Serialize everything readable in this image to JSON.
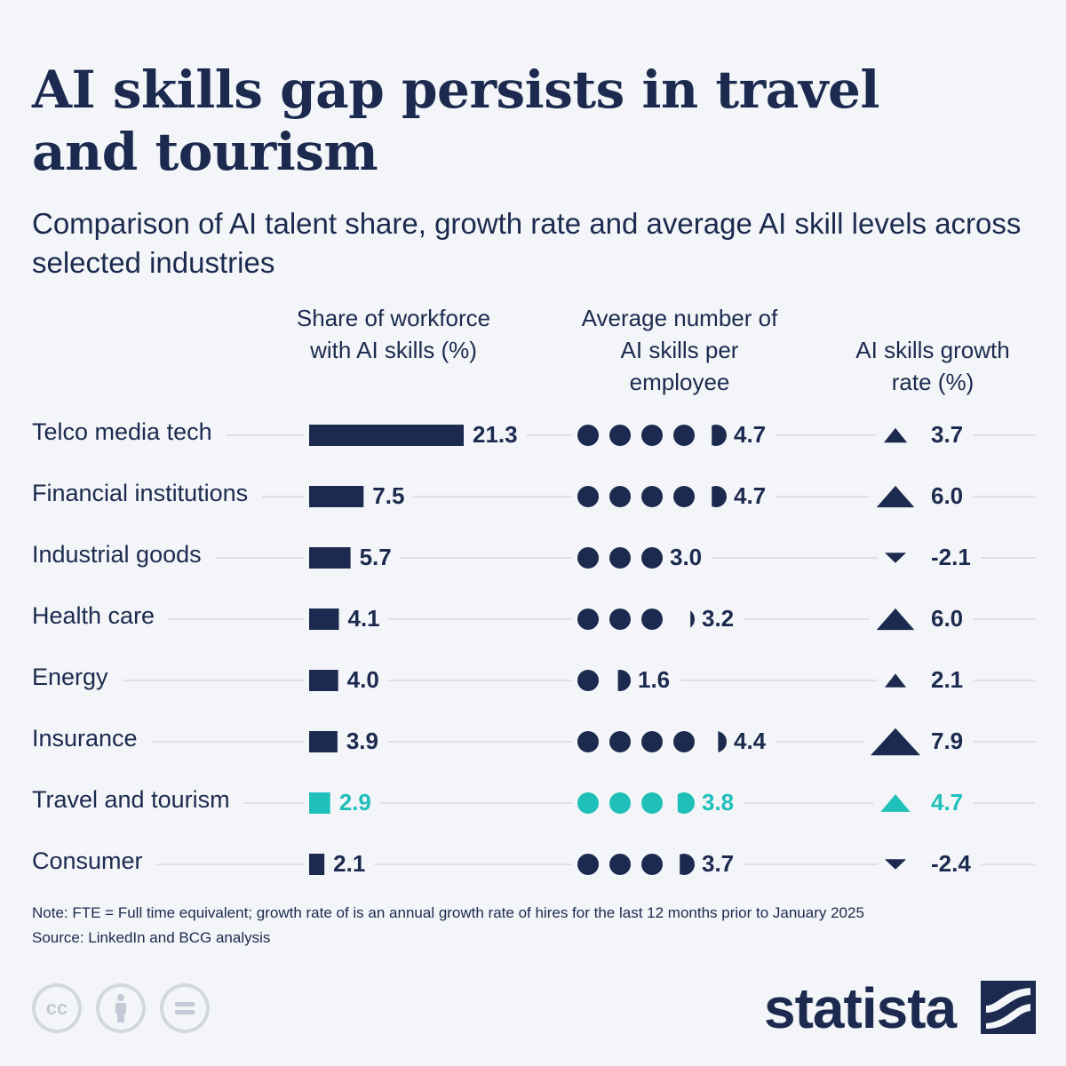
{
  "title": "AI skills gap persists in travel and tourism",
  "subtitle": "Comparison of AI talent share, growth rate and average AI skill levels across selected industries",
  "columns": {
    "share": "Share of workforce with AI skills (%)",
    "skills": "Average number of AI skills per employee",
    "growth": "AI skills growth rate (%)"
  },
  "colors": {
    "primary": "#1b2a4e",
    "highlight": "#1fbfba",
    "gridline": "#c8ccd4",
    "background": "#f3f5f8"
  },
  "chart_data": {
    "type": "table",
    "highlight_row": "Travel and tourism",
    "rows": [
      {
        "industry": "Telco media tech",
        "share": 21.3,
        "share_label": "21.3",
        "skills": 4.7,
        "skills_label": "4.7",
        "growth": 3.7,
        "growth_label": "3.7"
      },
      {
        "industry": "Financial institutions",
        "share": 7.5,
        "share_label": "7.5",
        "skills": 4.7,
        "skills_label": "4.7",
        "growth": 6.0,
        "growth_label": "6.0"
      },
      {
        "industry": "Industrial goods",
        "share": 5.7,
        "share_label": "5.7",
        "skills": 3.0,
        "skills_label": "3.0",
        "growth": -2.1,
        "growth_label": "-2.1"
      },
      {
        "industry": "Health care",
        "share": 4.1,
        "share_label": "4.1",
        "skills": 3.2,
        "skills_label": "3.2",
        "growth": 6.0,
        "growth_label": "6.0"
      },
      {
        "industry": "Energy",
        "share": 4.0,
        "share_label": "4.0",
        "skills": 1.6,
        "skills_label": "1.6",
        "growth": 2.1,
        "growth_label": "2.1"
      },
      {
        "industry": "Insurance",
        "share": 3.9,
        "share_label": "3.9",
        "skills": 4.4,
        "skills_label": "4.4",
        "growth": 7.9,
        "growth_label": "7.9"
      },
      {
        "industry": "Travel and tourism",
        "share": 2.9,
        "share_label": "2.9",
        "skills": 3.8,
        "skills_label": "3.8",
        "growth": 4.7,
        "growth_label": "4.7"
      },
      {
        "industry": "Consumer",
        "share": 2.1,
        "share_label": "2.1",
        "skills": 3.7,
        "skills_label": "3.7",
        "growth": -2.4,
        "growth_label": "-2.4"
      }
    ]
  },
  "footer": {
    "note": "Note: FTE = Full time equivalent; growth rate of is an annual growth rate of hires for the last 12 months prior to January 2025",
    "source": "Source: LinkedIn and BCG analysis",
    "brand": "statista",
    "license_icons": [
      "cc-icon",
      "attribution-icon",
      "no-derivatives-icon"
    ]
  }
}
